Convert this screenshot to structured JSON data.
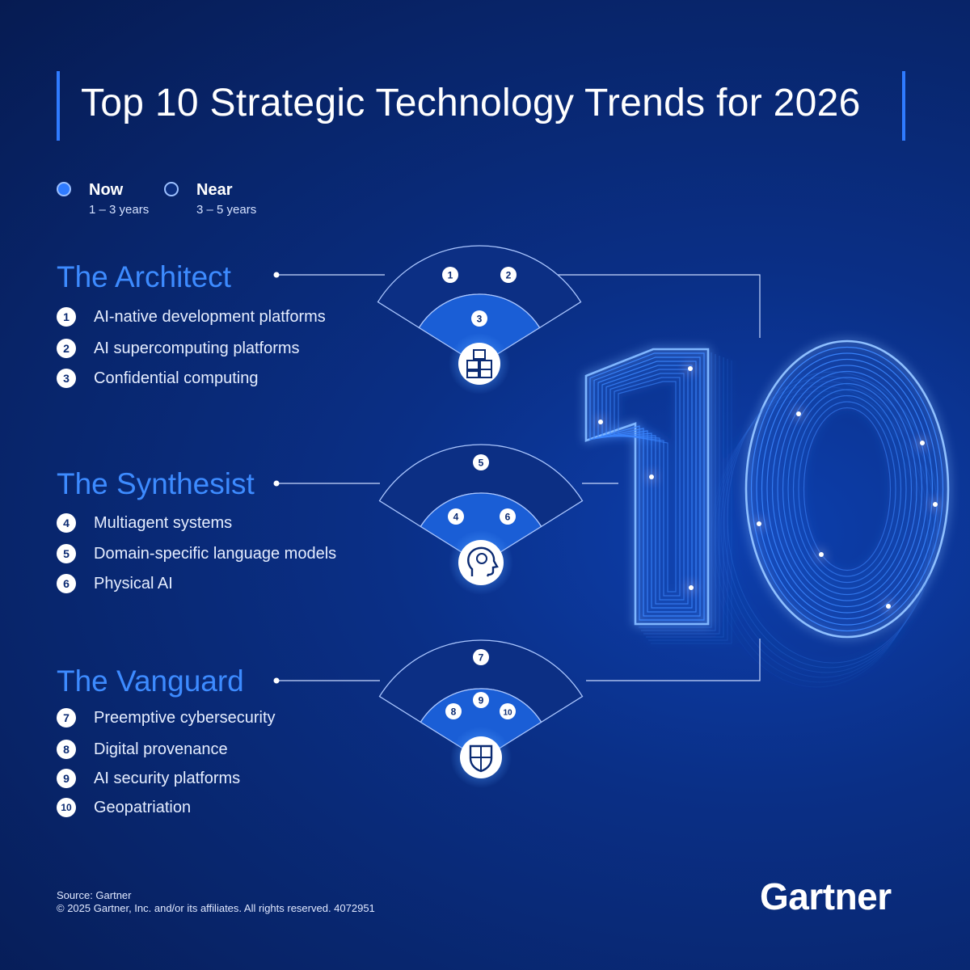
{
  "title": "Top 10 Strategic Technology Trends for 2026",
  "legend": [
    {
      "label": "Now",
      "sub": "1 – 3 years"
    },
    {
      "label": "Near",
      "sub": "3 – 5 years"
    }
  ],
  "groups": [
    {
      "title": "The Architect",
      "icon": "cubes-icon",
      "outer_markers": [
        "1",
        "2"
      ],
      "inner_markers": [
        "3"
      ],
      "trends": [
        {
          "num": "1",
          "label": "AI-native development platforms"
        },
        {
          "num": "2",
          "label": "AI supercomputing platforms"
        },
        {
          "num": "3",
          "label": "Confidential computing"
        }
      ]
    },
    {
      "title": "The Synthesist",
      "icon": "brain-head-icon",
      "outer_markers": [
        "5"
      ],
      "inner_markers": [
        "4",
        "6"
      ],
      "trends": [
        {
          "num": "4",
          "label": "Multiagent systems"
        },
        {
          "num": "5",
          "label": "Domain-specific language models"
        },
        {
          "num": "6",
          "label": "Physical AI"
        }
      ]
    },
    {
      "title": "The Vanguard",
      "icon": "shield-icon",
      "outer_markers": [
        "7"
      ],
      "inner_markers": [
        "8",
        "9",
        "10"
      ],
      "trends": [
        {
          "num": "7",
          "label": "Preemptive cybersecurity"
        },
        {
          "num": "8",
          "label": "Digital provenance"
        },
        {
          "num": "9",
          "label": "AI security platforms"
        },
        {
          "num": "10",
          "label": "Geopatriation"
        }
      ]
    }
  ],
  "big_number": "10",
  "source_line1": "Source: Gartner",
  "source_line2": "© 2025 Gartner, Inc. and/or its affiliates. All rights reserved. 4072951",
  "brand": "Gartner",
  "colors": {
    "accent": "#2f7bff",
    "title_blue": "#3d8bff",
    "outer_ring": "#0c2f84",
    "inner_ring": "#1a5ed6"
  }
}
